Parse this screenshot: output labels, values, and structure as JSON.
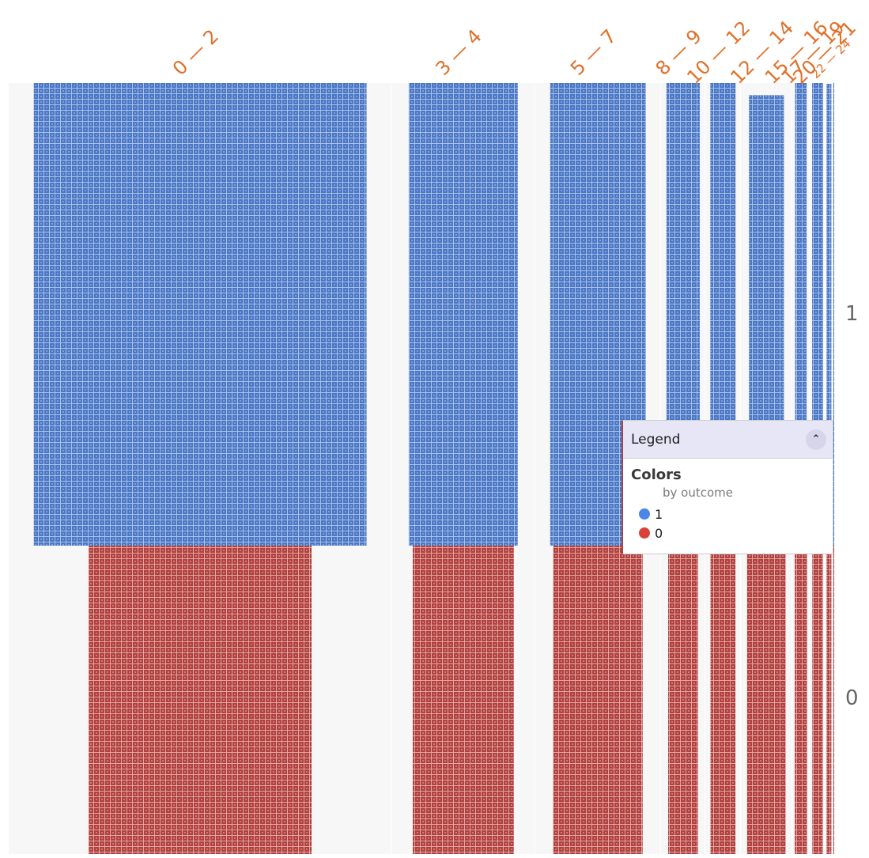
{
  "chart_data": {
    "type": "mosaic-unit-chart",
    "colors_legend": {
      "header": "Legend",
      "section_title": "Colors",
      "section_subtitle": "by outcome",
      "items": [
        {
          "label": "1",
          "color": "#4b77c4"
        },
        {
          "label": "0",
          "color": "#b0413e"
        }
      ]
    },
    "categories": [
      "0 — 2",
      "3 — 4",
      "5 — 7",
      "8 — 9",
      "10 — 12",
      "12 — 14",
      "15 — 16",
      "17 — 19",
      "20 — 21",
      "22 — 24"
    ],
    "rows": [
      "1",
      "0"
    ],
    "series": [
      {
        "name": "1",
        "color": "#4b77c4",
        "values": [
          4840,
          1410,
          1230,
          450,
          330,
          420,
          150,
          150,
          60,
          25
        ]
      },
      {
        "name": "0",
        "color": "#b0413e",
        "values": [
          2170,
          1210,
          1080,
          360,
          320,
          520,
          170,
          140,
          70,
          20
        ]
      }
    ],
    "category_label_color": "#e0702a",
    "row_label_color": "#666666",
    "panel_bg": "#f7f7f7"
  }
}
